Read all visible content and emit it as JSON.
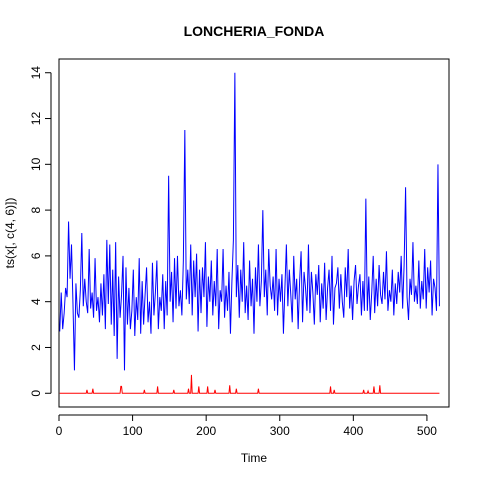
{
  "chart_data": {
    "type": "line",
    "title": "LONCHERIA_FONDA",
    "xlabel": "Time",
    "ylabel": "ts(x[, c(4, 6)])",
    "xlim": [
      0,
      530
    ],
    "ylim": [
      -0.6,
      14.6
    ],
    "x_ticks": [
      0,
      100,
      200,
      300,
      400,
      500
    ],
    "y_ticks": [
      0,
      2,
      4,
      6,
      8,
      10,
      12,
      14
    ],
    "grid": false,
    "legend": "none",
    "series": [
      {
        "color": "#0000ff",
        "points": [
          [
            1,
            2.7
          ],
          [
            3,
            4.4
          ],
          [
            5,
            2.8
          ],
          [
            7,
            3.5
          ],
          [
            9,
            4.6
          ],
          [
            11,
            4.2
          ],
          [
            13,
            7.5
          ],
          [
            15,
            5.0
          ],
          [
            17,
            6.5
          ],
          [
            19,
            3.9
          ],
          [
            21,
            1.0
          ],
          [
            23,
            4.8
          ],
          [
            25,
            3.5
          ],
          [
            27,
            3.3
          ],
          [
            29,
            4.5
          ],
          [
            31,
            7.0
          ],
          [
            33,
            3.8
          ],
          [
            35,
            5.0
          ],
          [
            37,
            4.0
          ],
          [
            39,
            3.5
          ],
          [
            41,
            6.3
          ],
          [
            43,
            3.7
          ],
          [
            45,
            4.4
          ],
          [
            47,
            3.3
          ],
          [
            49,
            5.9
          ],
          [
            51,
            3.6
          ],
          [
            53,
            4.2
          ],
          [
            55,
            3.1
          ],
          [
            57,
            4.8
          ],
          [
            59,
            3.4
          ],
          [
            61,
            5.2
          ],
          [
            63,
            2.8
          ],
          [
            65,
            6.7
          ],
          [
            67,
            3.9
          ],
          [
            69,
            6.5
          ],
          [
            71,
            3.0
          ],
          [
            73,
            5.4
          ],
          [
            75,
            2.5
          ],
          [
            77,
            6.6
          ],
          [
            79,
            1.5
          ],
          [
            81,
            5.1
          ],
          [
            83,
            3.3
          ],
          [
            85,
            4.3
          ],
          [
            87,
            6.0
          ],
          [
            89,
            1.0
          ],
          [
            91,
            5.5
          ],
          [
            93,
            3.0
          ],
          [
            95,
            4.6
          ],
          [
            97,
            2.8
          ],
          [
            99,
            3.6
          ],
          [
            101,
            5.4
          ],
          [
            103,
            2.5
          ],
          [
            105,
            4.2
          ],
          [
            107,
            3.2
          ],
          [
            109,
            5.9
          ],
          [
            111,
            2.6
          ],
          [
            113,
            4.9
          ],
          [
            115,
            3.0
          ],
          [
            117,
            4.3
          ],
          [
            119,
            5.5
          ],
          [
            121,
            3.1
          ],
          [
            123,
            4.0
          ],
          [
            125,
            2.6
          ],
          [
            127,
            5.7
          ],
          [
            129,
            3.4
          ],
          [
            131,
            4.4
          ],
          [
            133,
            5.8
          ],
          [
            135,
            2.8
          ],
          [
            137,
            4.2
          ],
          [
            139,
            3.6
          ],
          [
            141,
            5.2
          ],
          [
            143,
            2.8
          ],
          [
            145,
            4.9
          ],
          [
            147,
            3.4
          ],
          [
            149,
            9.5
          ],
          [
            151,
            4.0
          ],
          [
            153,
            5.3
          ],
          [
            155,
            3.1
          ],
          [
            157,
            5.9
          ],
          [
            159,
            3.7
          ],
          [
            161,
            6.0
          ],
          [
            163,
            3.8
          ],
          [
            165,
            4.5
          ],
          [
            167,
            3.4
          ],
          [
            169,
            5.8
          ],
          [
            171,
            11.5
          ],
          [
            173,
            4.1
          ],
          [
            175,
            5.4
          ],
          [
            177,
            3.9
          ],
          [
            179,
            6.5
          ],
          [
            181,
            3.4
          ],
          [
            183,
            5.8
          ],
          [
            185,
            4.2
          ],
          [
            187,
            6.1
          ],
          [
            189,
            2.7
          ],
          [
            191,
            5.4
          ],
          [
            193,
            3.5
          ],
          [
            195,
            5.5
          ],
          [
            197,
            4.2
          ],
          [
            199,
            6.6
          ],
          [
            201,
            2.9
          ],
          [
            203,
            5.1
          ],
          [
            205,
            4.0
          ],
          [
            207,
            5.8
          ],
          [
            209,
            3.4
          ],
          [
            211,
            4.9
          ],
          [
            213,
            3.8
          ],
          [
            215,
            6.3
          ],
          [
            217,
            2.8
          ],
          [
            219,
            4.5
          ],
          [
            221,
            4.0
          ],
          [
            223,
            6.3
          ],
          [
            225,
            3.3
          ],
          [
            227,
            4.7
          ],
          [
            229,
            3.6
          ],
          [
            231,
            5.3
          ],
          [
            233,
            2.6
          ],
          [
            235,
            4.9
          ],
          [
            237,
            6.7
          ],
          [
            239,
            14.0
          ],
          [
            241,
            4.2
          ],
          [
            243,
            5.6
          ],
          [
            245,
            3.3
          ],
          [
            247,
            5.4
          ],
          [
            249,
            4.0
          ],
          [
            251,
            6.6
          ],
          [
            253,
            3.5
          ],
          [
            255,
            4.7
          ],
          [
            257,
            3.2
          ],
          [
            259,
            5.8
          ],
          [
            261,
            3.8
          ],
          [
            263,
            5.0
          ],
          [
            265,
            2.6
          ],
          [
            267,
            5.5
          ],
          [
            269,
            4.0
          ],
          [
            271,
            6.5
          ],
          [
            273,
            3.8
          ],
          [
            275,
            4.9
          ],
          [
            277,
            8.0
          ],
          [
            279,
            4.2
          ],
          [
            281,
            5.4
          ],
          [
            283,
            3.4
          ],
          [
            285,
            6.3
          ],
          [
            287,
            4.7
          ],
          [
            289,
            4.1
          ],
          [
            291,
            5.1
          ],
          [
            293,
            3.6
          ],
          [
            295,
            6.3
          ],
          [
            297,
            3.4
          ],
          [
            299,
            5.0
          ],
          [
            301,
            4.0
          ],
          [
            303,
            5.2
          ],
          [
            305,
            2.6
          ],
          [
            307,
            4.6
          ],
          [
            309,
            6.5
          ],
          [
            311,
            3.8
          ],
          [
            313,
            5.4
          ],
          [
            315,
            4.3
          ],
          [
            317,
            3.1
          ],
          [
            319,
            6.0
          ],
          [
            321,
            4.1
          ],
          [
            323,
            5.0
          ],
          [
            325,
            2.8
          ],
          [
            327,
            4.9
          ],
          [
            329,
            6.2
          ],
          [
            331,
            3.1
          ],
          [
            333,
            5.3
          ],
          [
            335,
            4.6
          ],
          [
            337,
            3.6
          ],
          [
            339,
            6.5
          ],
          [
            341,
            3.5
          ],
          [
            343,
            5.3
          ],
          [
            345,
            4.4
          ],
          [
            347,
            3.0
          ],
          [
            349,
            5.2
          ],
          [
            351,
            4.3
          ],
          [
            353,
            5.6
          ],
          [
            355,
            3.1
          ],
          [
            357,
            4.8
          ],
          [
            359,
            3.7
          ],
          [
            361,
            5.7
          ],
          [
            363,
            3.2
          ],
          [
            365,
            4.6
          ],
          [
            367,
            5.4
          ],
          [
            369,
            3.6
          ],
          [
            371,
            6.0
          ],
          [
            373,
            3.0
          ],
          [
            375,
            4.6
          ],
          [
            377,
            4.8
          ],
          [
            379,
            5.5
          ],
          [
            381,
            3.7
          ],
          [
            383,
            5.2
          ],
          [
            385,
            4.0
          ],
          [
            387,
            3.3
          ],
          [
            389,
            5.5
          ],
          [
            391,
            4.2
          ],
          [
            393,
            6.3
          ],
          [
            395,
            3.7
          ],
          [
            397,
            4.7
          ],
          [
            399,
            3.2
          ],
          [
            401,
            4.9
          ],
          [
            403,
            5.6
          ],
          [
            405,
            3.9
          ],
          [
            407,
            4.7
          ],
          [
            409,
            5.2
          ],
          [
            411,
            3.4
          ],
          [
            413,
            4.9
          ],
          [
            415,
            3.6
          ],
          [
            417,
            8.5
          ],
          [
            419,
            3.6
          ],
          [
            421,
            5.1
          ],
          [
            423,
            3.2
          ],
          [
            425,
            4.4
          ],
          [
            427,
            6.0
          ],
          [
            429,
            3.5
          ],
          [
            431,
            5.0
          ],
          [
            433,
            3.8
          ],
          [
            435,
            5.6
          ],
          [
            437,
            4.3
          ],
          [
            439,
            3.9
          ],
          [
            441,
            5.3
          ],
          [
            443,
            4.1
          ],
          [
            445,
            6.2
          ],
          [
            447,
            3.6
          ],
          [
            449,
            4.5
          ],
          [
            451,
            4.0
          ],
          [
            453,
            5.4
          ],
          [
            455,
            3.4
          ],
          [
            457,
            4.8
          ],
          [
            459,
            3.9
          ],
          [
            461,
            5.3
          ],
          [
            463,
            4.4
          ],
          [
            465,
            6.0
          ],
          [
            467,
            3.7
          ],
          [
            469,
            5.6
          ],
          [
            471,
            9.0
          ],
          [
            473,
            4.2
          ],
          [
            475,
            3.2
          ],
          [
            477,
            5.0
          ],
          [
            479,
            4.3
          ],
          [
            481,
            6.6
          ],
          [
            483,
            4.0
          ],
          [
            485,
            4.7
          ],
          [
            487,
            3.9
          ],
          [
            489,
            5.8
          ],
          [
            491,
            3.7
          ],
          [
            493,
            4.9
          ],
          [
            495,
            4.1
          ],
          [
            497,
            6.3
          ],
          [
            499,
            3.7
          ],
          [
            501,
            5.5
          ],
          [
            503,
            4.4
          ],
          [
            505,
            5.8
          ],
          [
            507,
            3.4
          ],
          [
            509,
            5.0
          ],
          [
            511,
            4.6
          ],
          [
            513,
            3.6
          ],
          [
            515,
            10.0
          ],
          [
            517,
            3.8
          ]
        ]
      },
      {
        "color": "#ff0000",
        "points": [
          [
            1,
            0
          ],
          [
            37,
            0
          ],
          [
            38,
            0.15
          ],
          [
            39,
            0
          ],
          [
            45,
            0
          ],
          [
            46,
            0.2
          ],
          [
            47,
            0
          ],
          [
            83,
            0
          ],
          [
            84,
            0.3
          ],
          [
            85,
            0.3
          ],
          [
            86,
            0
          ],
          [
            115,
            0
          ],
          [
            116,
            0.15
          ],
          [
            117,
            0
          ],
          [
            133,
            0
          ],
          [
            134,
            0.3
          ],
          [
            135,
            0
          ],
          [
            155,
            0
          ],
          [
            156,
            0.15
          ],
          [
            157,
            0
          ],
          [
            175,
            0
          ],
          [
            176,
            0.2
          ],
          [
            177,
            0
          ],
          [
            179,
            0
          ],
          [
            180,
            0.8
          ],
          [
            181,
            0
          ],
          [
            189,
            0
          ],
          [
            190,
            0.3
          ],
          [
            191,
            0
          ],
          [
            201,
            0
          ],
          [
            202,
            0.3
          ],
          [
            203,
            0
          ],
          [
            211,
            0
          ],
          [
            212,
            0.15
          ],
          [
            213,
            0
          ],
          [
            231,
            0
          ],
          [
            232,
            0.35
          ],
          [
            233,
            0
          ],
          [
            240,
            0
          ],
          [
            241,
            0.2
          ],
          [
            242,
            0
          ],
          [
            270,
            0
          ],
          [
            271,
            0.2
          ],
          [
            272,
            0
          ],
          [
            368,
            0
          ],
          [
            369,
            0.3
          ],
          [
            370,
            0
          ],
          [
            373,
            0
          ],
          [
            374,
            0.15
          ],
          [
            375,
            0
          ],
          [
            413,
            0
          ],
          [
            414,
            0.15
          ],
          [
            415,
            0
          ],
          [
            419,
            0
          ],
          [
            420,
            0.1
          ],
          [
            421,
            0
          ],
          [
            427,
            0
          ],
          [
            428,
            0.3
          ],
          [
            429,
            0
          ],
          [
            435,
            0
          ],
          [
            436,
            0.35
          ],
          [
            437,
            0
          ],
          [
            517,
            0
          ]
        ]
      }
    ]
  }
}
